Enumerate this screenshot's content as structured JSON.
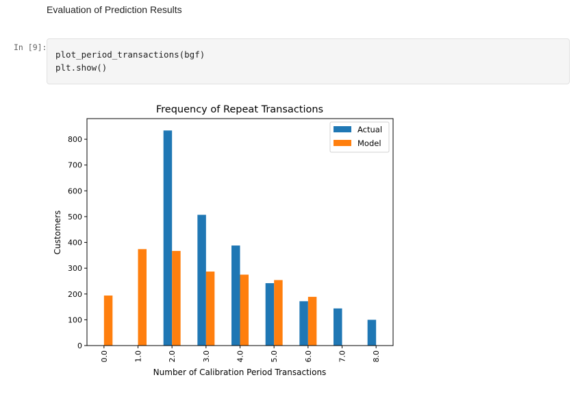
{
  "markdown": {
    "heading": "Evaluation of Prediction Results"
  },
  "cell": {
    "prompt": "In [9]:",
    "code_lines": [
      "plot_period_transactions(bgf)",
      "plt.show()"
    ]
  },
  "chart_data": {
    "type": "bar",
    "title": "Frequency of Repeat Transactions",
    "xlabel": "Number of Calibration Period Transactions",
    "ylabel": "Customers",
    "categories": [
      "0.0",
      "1.0",
      "2.0",
      "3.0",
      "4.0",
      "5.0",
      "6.0",
      "7.0",
      "8.0"
    ],
    "series": [
      {
        "name": "Actual",
        "color": "#1f77b4",
        "values": [
          0,
          0,
          834,
          507,
          388,
          242,
          172,
          144,
          100
        ]
      },
      {
        "name": "Model",
        "color": "#ff7f0e",
        "values": [
          194,
          374,
          367,
          287,
          275,
          254,
          189,
          0,
          0
        ]
      }
    ],
    "ylim": [
      0,
      880
    ],
    "yticks": [
      0,
      100,
      200,
      300,
      400,
      500,
      600,
      700,
      800
    ],
    "legend_position": "top-right",
    "grid": false
  }
}
